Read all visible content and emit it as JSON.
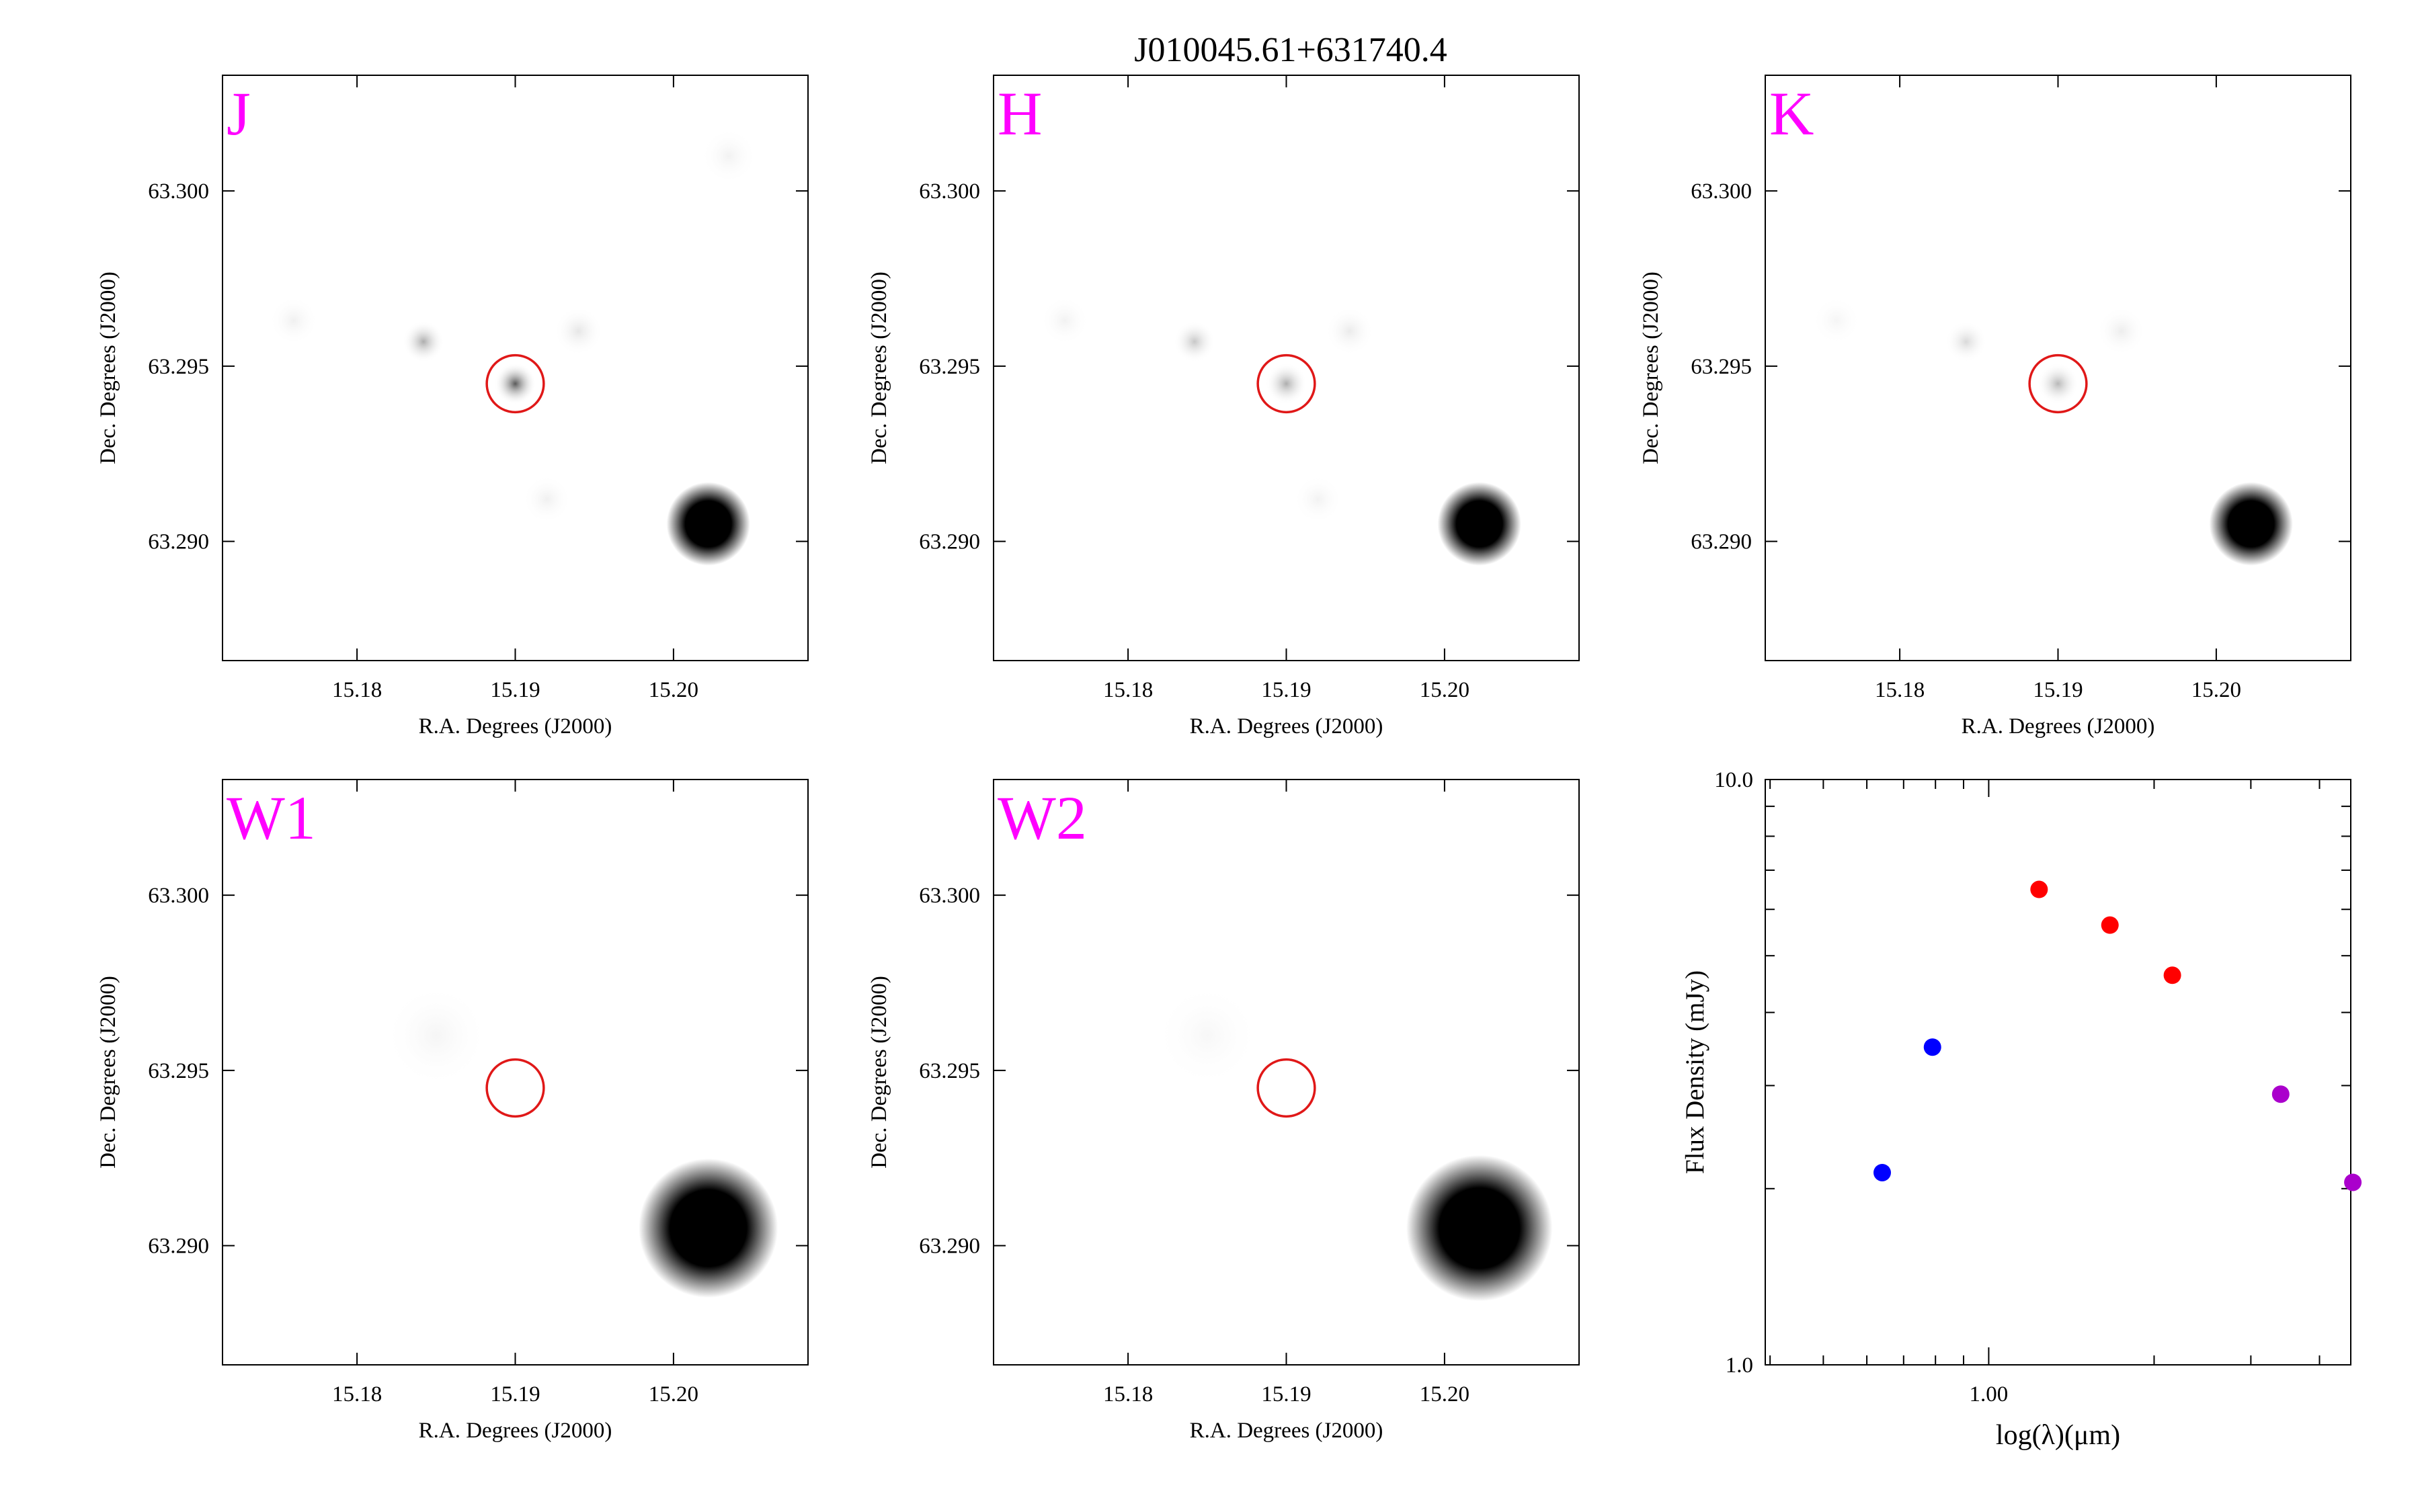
{
  "title": "J010045.61+631740.4",
  "colors": {
    "band_label": "#ff00ff",
    "aperture": "#e01818",
    "sed_2mass": "#ff0000",
    "sed_optical": "#0000ff",
    "sed_wise": "#aa00cc"
  },
  "chart_data": [
    {
      "type": "heatmap",
      "band": "J",
      "xlabel": "R.A. Degrees (J2000)",
      "ylabel": "Dec. Degrees (J2000)",
      "xlim": [
        15.1715,
        15.2085
      ],
      "ylim": [
        63.2866,
        63.3033
      ],
      "xticks": [
        15.18,
        15.19,
        15.2
      ],
      "xtick_labels": [
        "15.18",
        "15.19",
        "15.20"
      ],
      "yticks": [
        63.29,
        63.295,
        63.3
      ],
      "ytick_labels": [
        "63.290",
        "63.295",
        "63.300"
      ],
      "aperture": {
        "ra": 15.19,
        "dec": 63.2945,
        "radius_deg": 0.0018
      },
      "sources": [
        {
          "ra": 15.2022,
          "dec": 63.2905,
          "peak": 1.0,
          "sigma": 0.0012,
          "kind": "bright"
        },
        {
          "ra": 15.19,
          "dec": 63.2945,
          "peak": 0.65,
          "sigma": 0.0006
        },
        {
          "ra": 15.1842,
          "dec": 63.2957,
          "peak": 0.32,
          "sigma": 0.0006
        },
        {
          "ra": 15.194,
          "dec": 63.296,
          "peak": 0.1,
          "sigma": 0.0007
        },
        {
          "ra": 15.176,
          "dec": 63.2963,
          "peak": 0.06,
          "sigma": 0.0007
        },
        {
          "ra": 15.192,
          "dec": 63.2912,
          "peak": 0.06,
          "sigma": 0.0007
        },
        {
          "ra": 15.2035,
          "dec": 63.301,
          "peak": 0.05,
          "sigma": 0.0008
        }
      ]
    },
    {
      "type": "heatmap",
      "band": "H",
      "xlabel": "R.A. Degrees (J2000)",
      "ylabel": "Dec. Degrees (J2000)",
      "xlim": [
        15.1715,
        15.2085
      ],
      "ylim": [
        63.2866,
        63.3033
      ],
      "xticks": [
        15.18,
        15.19,
        15.2
      ],
      "xtick_labels": [
        "15.18",
        "15.19",
        "15.20"
      ],
      "yticks": [
        63.29,
        63.295,
        63.3
      ],
      "ytick_labels": [
        "63.290",
        "63.295",
        "63.300"
      ],
      "aperture": {
        "ra": 15.19,
        "dec": 63.2945,
        "radius_deg": 0.0018
      },
      "sources": [
        {
          "ra": 15.2022,
          "dec": 63.2905,
          "peak": 1.0,
          "sigma": 0.0012,
          "kind": "bright"
        },
        {
          "ra": 15.19,
          "dec": 63.2945,
          "peak": 0.32,
          "sigma": 0.0006
        },
        {
          "ra": 15.1842,
          "dec": 63.2957,
          "peak": 0.22,
          "sigma": 0.0006
        },
        {
          "ra": 15.194,
          "dec": 63.296,
          "peak": 0.08,
          "sigma": 0.0007
        },
        {
          "ra": 15.176,
          "dec": 63.2963,
          "peak": 0.05,
          "sigma": 0.0007
        },
        {
          "ra": 15.192,
          "dec": 63.2912,
          "peak": 0.05,
          "sigma": 0.0007
        }
      ]
    },
    {
      "type": "heatmap",
      "band": "K",
      "xlabel": "R.A. Degrees (J2000)",
      "ylabel": "Dec. Degrees (J2000)",
      "xlim": [
        15.1715,
        15.2085
      ],
      "ylim": [
        63.2866,
        63.3033
      ],
      "xticks": [
        15.18,
        15.19,
        15.2
      ],
      "xtick_labels": [
        "15.18",
        "15.19",
        "15.20"
      ],
      "yticks": [
        63.29,
        63.295,
        63.3
      ],
      "ytick_labels": [
        "63.290",
        "63.295",
        "63.300"
      ],
      "aperture": {
        "ra": 15.19,
        "dec": 63.2945,
        "radius_deg": 0.0018
      },
      "sources": [
        {
          "ra": 15.2022,
          "dec": 63.2905,
          "peak": 1.0,
          "sigma": 0.0012,
          "kind": "bright"
        },
        {
          "ra": 15.19,
          "dec": 63.2945,
          "peak": 0.28,
          "sigma": 0.0006
        },
        {
          "ra": 15.1842,
          "dec": 63.2957,
          "peak": 0.15,
          "sigma": 0.0006
        },
        {
          "ra": 15.194,
          "dec": 63.296,
          "peak": 0.07,
          "sigma": 0.0007
        },
        {
          "ra": 15.176,
          "dec": 63.2963,
          "peak": 0.04,
          "sigma": 0.0007
        }
      ]
    },
    {
      "type": "heatmap",
      "band": "W1",
      "xlabel": "R.A. Degrees (J2000)",
      "ylabel": "Dec. Degrees (J2000)",
      "xlim": [
        15.1715,
        15.2085
      ],
      "ylim": [
        63.2866,
        63.3033
      ],
      "xticks": [
        15.18,
        15.19,
        15.2
      ],
      "xtick_labels": [
        "15.18",
        "15.19",
        "15.20"
      ],
      "yticks": [
        63.29,
        63.295,
        63.3
      ],
      "ytick_labels": [
        "63.290",
        "63.295",
        "63.300"
      ],
      "aperture": {
        "ra": 15.19,
        "dec": 63.2945,
        "radius_deg": 0.0018
      },
      "sources": [
        {
          "ra": 15.2022,
          "dec": 63.2905,
          "peak": 1.0,
          "sigma": 0.002,
          "kind": "bright"
        },
        {
          "ra": 15.185,
          "dec": 63.296,
          "peak": 0.04,
          "sigma": 0.0015
        }
      ]
    },
    {
      "type": "heatmap",
      "band": "W2",
      "xlabel": "R.A. Degrees (J2000)",
      "ylabel": "Dec. Degrees (J2000)",
      "xlim": [
        15.1715,
        15.2085
      ],
      "ylim": [
        63.2866,
        63.3033
      ],
      "xticks": [
        15.18,
        15.19,
        15.2
      ],
      "xtick_labels": [
        "15.18",
        "15.19",
        "15.20"
      ],
      "yticks": [
        63.29,
        63.295,
        63.3
      ],
      "ytick_labels": [
        "63.290",
        "63.295",
        "63.300"
      ],
      "aperture": {
        "ra": 15.19,
        "dec": 63.2945,
        "radius_deg": 0.0018
      },
      "sources": [
        {
          "ra": 15.2022,
          "dec": 63.2905,
          "peak": 1.0,
          "sigma": 0.0021,
          "kind": "bright"
        },
        {
          "ra": 15.185,
          "dec": 63.296,
          "peak": 0.03,
          "sigma": 0.0015
        }
      ]
    },
    {
      "type": "scatter",
      "xlabel": "log(λ)(μm)",
      "ylabel": "Flux Density (mJy)",
      "xscale": "log",
      "yscale": "log",
      "xlim": [
        0.392,
        4.56
      ],
      "ylim": [
        1.0,
        10.0
      ],
      "xticks": [
        1.0
      ],
      "xtick_labels": [
        "1.00"
      ],
      "yticks": [
        1.0,
        10.0
      ],
      "ytick_labels": [
        "1.0",
        "10.0"
      ],
      "series": [
        {
          "color": "#0000ff",
          "x": [
            0.64,
            0.79
          ],
          "y": [
            2.13,
            3.49
          ],
          "yerr": [
            0.04,
            0.06
          ]
        },
        {
          "color": "#ff0000",
          "x": [
            1.235,
            1.662,
            2.159
          ],
          "y": [
            6.49,
            5.64,
            4.63
          ],
          "yerr": [
            0.14,
            0.15,
            0.13
          ]
        },
        {
          "color": "#aa00cc",
          "x": [
            3.4,
            4.6
          ],
          "y": [
            2.9,
            2.05
          ],
          "yerr": [
            0.07,
            0.06
          ]
        }
      ]
    }
  ]
}
